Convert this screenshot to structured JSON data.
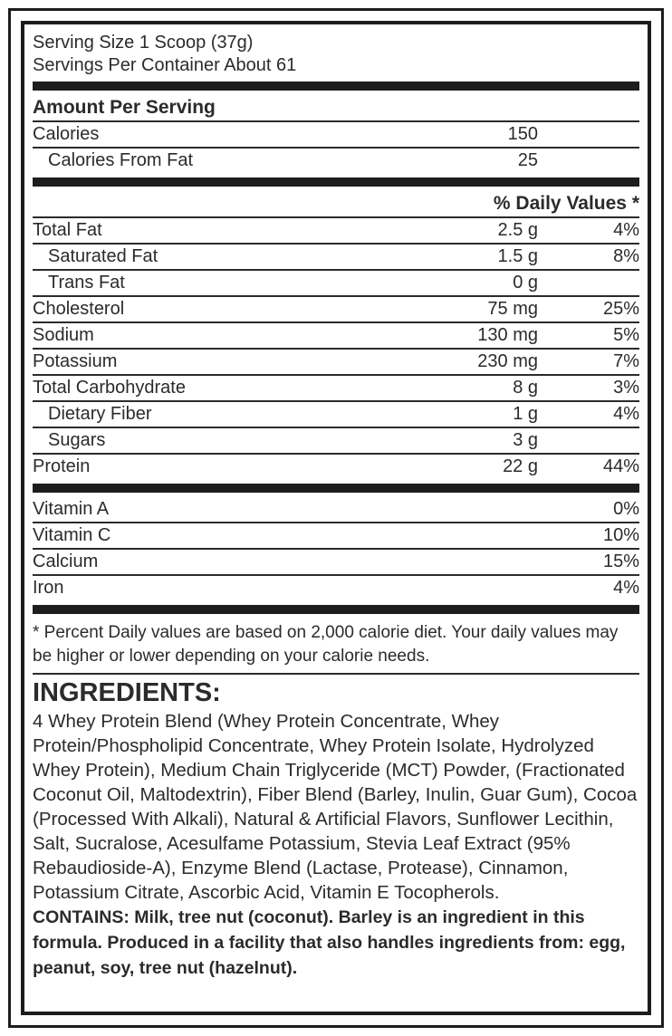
{
  "label": {
    "serving_size": "Serving Size 1 Scoop (37g)",
    "servings_per_container": "Servings Per Container About 61",
    "amount_per_serving_heading": "Amount Per Serving",
    "calories_row": {
      "label": "Calories",
      "value": "150"
    },
    "calories_from_fat_row": {
      "label": "Calories From Fat",
      "value": "25"
    },
    "daily_values_header": "% Daily Values *",
    "nutrients": [
      {
        "label": "Total Fat",
        "amount": "2.5 g",
        "dv": "4%",
        "indent": false
      },
      {
        "label": "Saturated Fat",
        "amount": "1.5 g",
        "dv": "8%",
        "indent": true
      },
      {
        "label": "Trans Fat",
        "amount": "0 g",
        "dv": "",
        "indent": true
      },
      {
        "label": "Cholesterol",
        "amount": "75 mg",
        "dv": "25%",
        "indent": false
      },
      {
        "label": "Sodium",
        "amount": "130 mg",
        "dv": "5%",
        "indent": false
      },
      {
        "label": "Potassium",
        "amount": "230 mg",
        "dv": "7%",
        "indent": false
      },
      {
        "label": "Total Carbohydrate",
        "amount": "8 g",
        "dv": "3%",
        "indent": false
      },
      {
        "label": "Dietary Fiber",
        "amount": "1 g",
        "dv": "4%",
        "indent": true
      },
      {
        "label": "Sugars",
        "amount": "3 g",
        "dv": "",
        "indent": true
      },
      {
        "label": "Protein",
        "amount": "22 g",
        "dv": "44%",
        "indent": false
      }
    ],
    "vitamins": [
      {
        "label": "Vitamin A",
        "dv": "0%"
      },
      {
        "label": "Vitamin C",
        "dv": "10%"
      },
      {
        "label": "Calcium",
        "dv": "15%"
      },
      {
        "label": "Iron",
        "dv": "4%"
      }
    ],
    "footnote": "* Percent Daily values are based on 2,000 calorie diet. Your daily values may be higher or lower depending on your calorie needs.",
    "ingredients_heading": "INGREDIENTS:",
    "ingredients_text": "4 Whey Protein Blend (Whey Protein Concentrate, Whey Protein/Phospholipid Concentrate, Whey Protein Isolate, Hydrolyzed Whey Protein), Medium Chain Triglyceride (MCT) Powder, (Fractionated Coconut Oil, Maltodextrin), Fiber Blend (Barley, Inulin, Guar Gum), Cocoa (Processed With Alkali), Natural & Artificial Flavors, Sunflower Lecithin, Salt, Sucralose, Acesulfame Potassium, Stevia Leaf Extract (95% Rebaudioside-A), Enzyme Blend (Lactase, Protease), Cinnamon, Potassium Citrate, Ascorbic Acid, Vitamin E Tocopherols.",
    "contains_text": "CONTAINS: Milk, tree nut (coconut). Barley is an ingredient in this formula. Produced in a facility that also handles ingredients from: egg, peanut, soy, tree nut (hazelnut).",
    "colors": {
      "ink": "#2b2b2b",
      "bar": "#1d1d1d",
      "background": "#ffffff"
    }
  }
}
